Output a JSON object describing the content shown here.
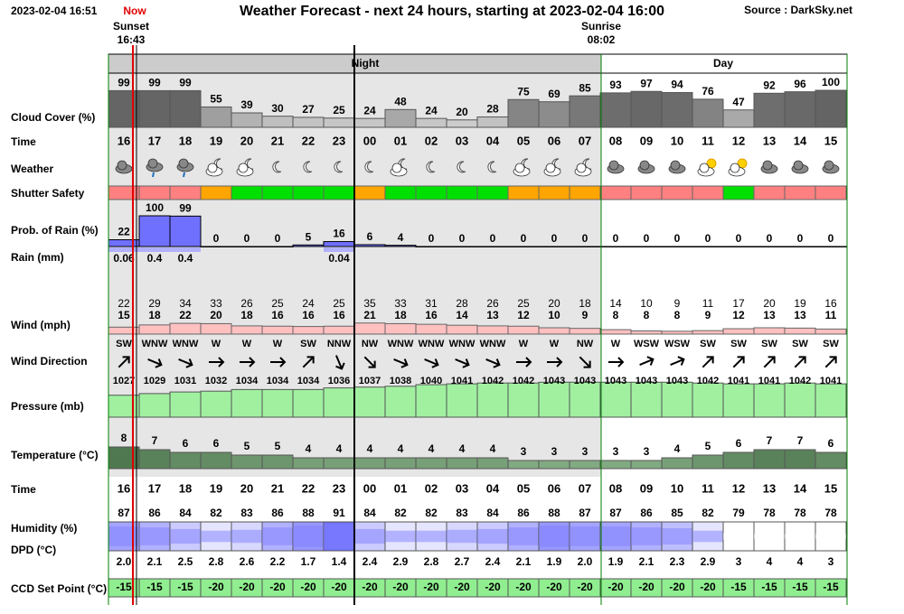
{
  "header": {
    "datetime": "2023-02-04 16:51",
    "now": "Now",
    "sunset": "Sunset",
    "sunset_time": "16:43",
    "title": "Weather Forecast - next 24 hours, starting at 2023-02-04 16:00",
    "source": "Source : DarkSky.net",
    "sunrise": "Sunrise",
    "sunrise_time": "08:02"
  },
  "bands": {
    "night": "Night",
    "day": "Day"
  },
  "row_labels": {
    "cloud": "Cloud Cover (%)",
    "time": "Time",
    "weather": "Weather",
    "shutter": "Shutter Safety",
    "rain_prob": "Prob. of Rain (%)",
    "rain": "Rain (mm)",
    "wind": "Wind (mph)",
    "wind_dir": "Wind Direction",
    "pressure": "Pressure (mb)",
    "temperature": "Temperature (°C)",
    "time2": "Time",
    "humidity": "Humidity (%)",
    "dpd": "DPD (°C)",
    "ccd": "CCD Set Point (°C)"
  },
  "hours": [
    "16",
    "17",
    "18",
    "19",
    "20",
    "21",
    "22",
    "23",
    "00",
    "01",
    "02",
    "03",
    "04",
    "05",
    "06",
    "07",
    "08",
    "09",
    "10",
    "11",
    "12",
    "13",
    "14",
    "15"
  ],
  "cloud_cover": [
    99,
    99,
    99,
    55,
    39,
    30,
    27,
    25,
    24,
    48,
    24,
    20,
    28,
    75,
    69,
    85,
    93,
    97,
    94,
    76,
    47,
    92,
    96,
    100
  ],
  "shutter_colors": [
    "#ff8080",
    "#ff8080",
    "#ff8080",
    "#ffa500",
    "#00e000",
    "#00e000",
    "#00e000",
    "#00e000",
    "#ffa500",
    "#00e000",
    "#00e000",
    "#00e000",
    "#00e000",
    "#ffa500",
    "#ffa500",
    "#ffa500",
    "#ff8080",
    "#ff8080",
    "#ff8080",
    "#ff8080",
    "#00e000",
    "#ff8080",
    "#ff8080",
    "#ff8080"
  ],
  "rain_probability": [
    22,
    100,
    99,
    0,
    0,
    0,
    5,
    16,
    6,
    4,
    0,
    0,
    0,
    0,
    0,
    0,
    0,
    0,
    0,
    0,
    0,
    0,
    0,
    0
  ],
  "rain_mm": [
    "0.06",
    "0.4",
    "0.4",
    null,
    null,
    null,
    null,
    "0.04",
    null,
    null,
    null,
    null,
    null,
    null,
    null,
    null,
    null,
    null,
    null,
    null,
    null,
    null,
    null,
    null
  ],
  "wind_gust": [
    22,
    29,
    34,
    33,
    26,
    25,
    24,
    25,
    35,
    33,
    31,
    28,
    26,
    25,
    20,
    18,
    14,
    10,
    9,
    11,
    17,
    20,
    19,
    16
  ],
  "wind_speed": [
    15,
    18,
    22,
    20,
    18,
    16,
    16,
    16,
    21,
    18,
    16,
    14,
    13,
    12,
    10,
    9,
    8,
    8,
    8,
    9,
    12,
    13,
    13,
    11
  ],
  "wind_direction": [
    "SW",
    "WNW",
    "WNW",
    "W",
    "W",
    "W",
    "SW",
    "NNW",
    "NW",
    "WNW",
    "WNW",
    "WNW",
    "WNW",
    "W",
    "W",
    "NW",
    "W",
    "WSW",
    "WSW",
    "SW",
    "SW",
    "SW",
    "SW",
    "SW"
  ],
  "wind_direction_deg": [
    225,
    292.5,
    292.5,
    270,
    270,
    270,
    225,
    337.5,
    315,
    292.5,
    292.5,
    292.5,
    292.5,
    270,
    270,
    315,
    270,
    247.5,
    247.5,
    225,
    225,
    225,
    225,
    225
  ],
  "pressure": [
    1027,
    1029,
    1031,
    1032,
    1034,
    1034,
    1034,
    1036,
    1037,
    1038,
    1040,
    1041,
    1042,
    1042,
    1043,
    1043,
    1043,
    1043,
    1043,
    1042,
    1041,
    1041,
    1042,
    1041
  ],
  "temperature": [
    8,
    7,
    6,
    6,
    5,
    5,
    4,
    4,
    4,
    4,
    4,
    4,
    4,
    3,
    3,
    3,
    3,
    3,
    4,
    5,
    6,
    7,
    7,
    6
  ],
  "humidity": [
    87,
    86,
    84,
    82,
    83,
    86,
    88,
    91,
    84,
    82,
    82,
    83,
    84,
    86,
    88,
    87,
    87,
    86,
    85,
    82,
    79,
    78,
    78,
    78
  ],
  "dpd": [
    "2.0",
    "2.1",
    "2.5",
    "2.8",
    "2.6",
    "2.2",
    "1.7",
    "1.4",
    "2.4",
    "2.9",
    "2.8",
    "2.7",
    "2.4",
    "2.1",
    "1.9",
    "2.0",
    "1.9",
    "2.1",
    "2.3",
    "2.9",
    "3",
    "4",
    "4",
    "3"
  ],
  "ccd_set_point": [
    -15,
    -15,
    -15,
    -20,
    -20,
    -20,
    -20,
    -20,
    -20,
    -20,
    -20,
    -20,
    -20,
    -20,
    -20,
    -20,
    -20,
    -20,
    -20,
    -20,
    -15,
    -15,
    -15,
    -15
  ]
}
